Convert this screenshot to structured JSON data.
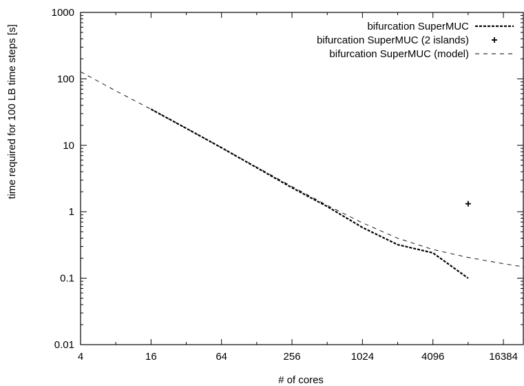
{
  "chart_data": {
    "type": "line",
    "title": "",
    "xlabel": "# of cores",
    "ylabel": "time required for 100 LB time steps [s]",
    "x_scale": "log2",
    "y_scale": "log10",
    "xlim": [
      4,
      24576
    ],
    "ylim": [
      0.01,
      1000
    ],
    "x_ticks": [
      4,
      16,
      64,
      256,
      1024,
      4096,
      16384
    ],
    "x_tick_labels": [
      "4",
      "16",
      "64",
      "256",
      "1024",
      "4096",
      "16384"
    ],
    "y_ticks": [
      0.01,
      0.1,
      1,
      10,
      100,
      1000
    ],
    "y_tick_labels": [
      "0.01",
      "0.1",
      "1",
      "10",
      "100",
      "1000"
    ],
    "grid": false,
    "legend_position": "top-right",
    "series": [
      {
        "name": "bifurcation SuperMUC",
        "style": "dashed-thick",
        "color": "#000000",
        "x": [
          16,
          32,
          64,
          128,
          256,
          512,
          1024,
          2048,
          4096,
          8192
        ],
        "y": [
          35,
          18,
          9.2,
          4.6,
          2.3,
          1.2,
          0.58,
          0.32,
          0.24,
          0.1
        ]
      },
      {
        "name": "bifurcation SuperMUC (2 islands)",
        "style": "marker-plus",
        "color": "#000000",
        "x": [
          8192
        ],
        "y": [
          1.32
        ]
      },
      {
        "name": "bifurcation SuperMUC (model)",
        "style": "dashed-thin",
        "color": "#000000",
        "x": [
          4,
          8,
          16,
          32,
          64,
          128,
          256,
          512,
          1024,
          2048,
          4096,
          8192,
          16384,
          24576
        ],
        "y": [
          128,
          66,
          35,
          18,
          9.2,
          4.7,
          2.4,
          1.25,
          0.68,
          0.4,
          0.27,
          0.205,
          0.165,
          0.148
        ]
      }
    ]
  }
}
